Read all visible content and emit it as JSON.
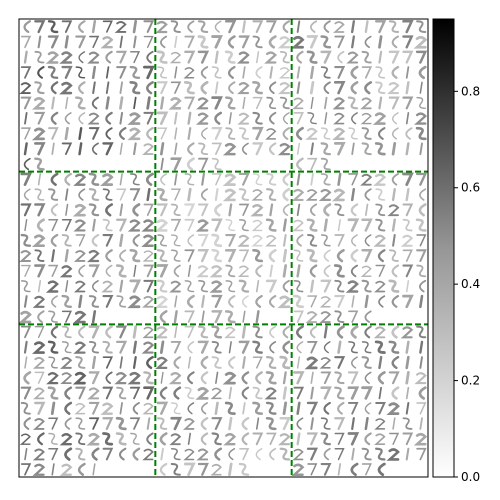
{
  "chart_data": {
    "type": "heatmap",
    "title": "",
    "xlabel": "",
    "ylabel": "",
    "grid": {
      "rows": 3,
      "cols": 3,
      "line_color": "#007f00",
      "line_style": "dashed"
    },
    "cells_per_block": {
      "rows": 10,
      "cols": 10
    },
    "blocks": [
      {
        "row": 0,
        "col": 0,
        "filled_cells": 92,
        "mean_intensity": 0.45
      },
      {
        "row": 0,
        "col": 1,
        "filled_cells": 95,
        "mean_intensity": 0.32
      },
      {
        "row": 0,
        "col": 2,
        "filled_cells": 93,
        "mean_intensity": 0.35
      },
      {
        "row": 1,
        "col": 0,
        "filled_cells": 96,
        "mean_intensity": 0.38
      },
      {
        "row": 1,
        "col": 1,
        "filled_cells": 98,
        "mean_intensity": 0.28
      },
      {
        "row": 1,
        "col": 2,
        "filled_cells": 96,
        "mean_intensity": 0.33
      },
      {
        "row": 2,
        "col": 0,
        "filled_cells": 96,
        "mean_intensity": 0.42
      },
      {
        "row": 2,
        "col": 1,
        "filled_cells": 97,
        "mean_intensity": 0.34
      },
      {
        "row": 2,
        "col": 2,
        "filled_cells": 97,
        "mean_intensity": 0.37
      }
    ],
    "colorbar": {
      "colormap": "Greys",
      "low_color": "#ffffff",
      "high_color": "#000000",
      "range": [
        0.0,
        0.95
      ],
      "ticks": [
        0.0,
        0.2,
        0.4,
        0.6,
        0.8
      ],
      "tick_labels": [
        "0.0",
        "0.2",
        "0.4",
        "0.6",
        "0.8"
      ]
    },
    "hide_axes_ticks": true
  }
}
